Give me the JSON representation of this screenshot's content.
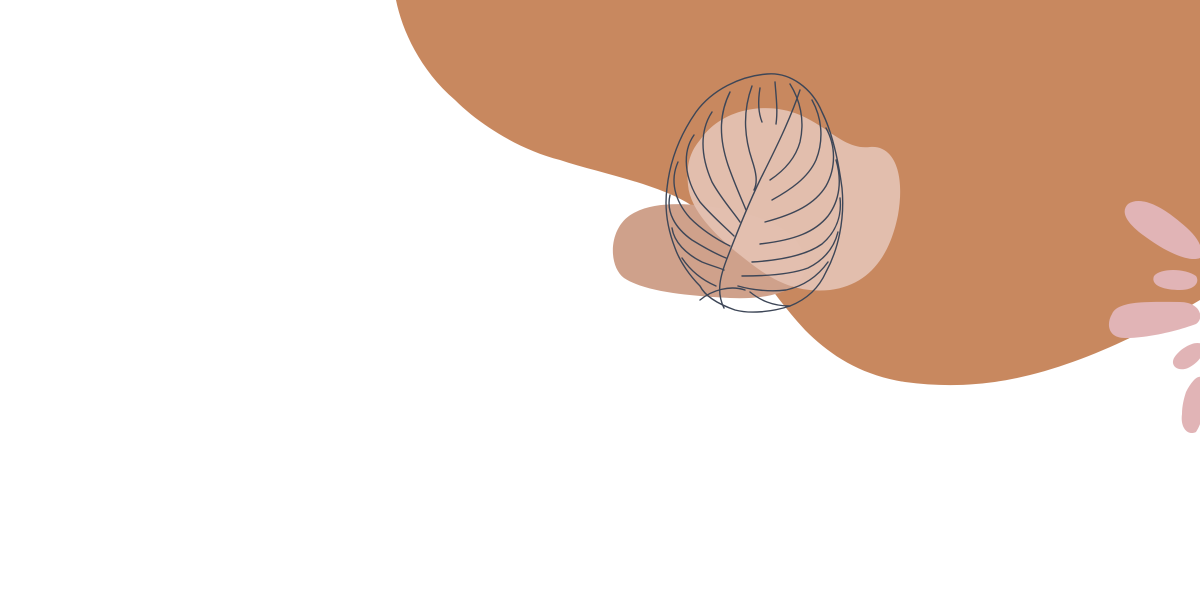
{
  "scene": {
    "background_color": "#ffffff",
    "elements": [
      {
        "name": "terracotta-blob",
        "kind": "organic-shape",
        "color": "#c8885f"
      },
      {
        "name": "muted-clay-blob",
        "kind": "organic-shape",
        "color": "#cfa18b"
      },
      {
        "name": "light-peach-blob",
        "kind": "organic-shape",
        "color": "#e4c1b1"
      },
      {
        "name": "monstera-leaf-line-art",
        "kind": "line-illustration",
        "color": "#3d4657"
      },
      {
        "name": "pink-petal-sprigs",
        "kind": "organic-shape",
        "color": "#e1b4b6"
      }
    ]
  }
}
